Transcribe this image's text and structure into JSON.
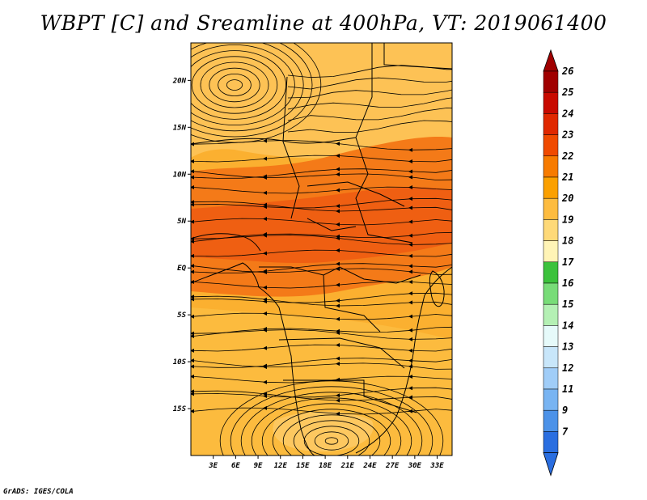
{
  "title": "WBPT [C] and Sreamline at 400hPa, VT: 2019061400",
  "credit": "GrADS: IGES/COLA",
  "map": {
    "region": "Central & Southern Africa",
    "lon_range": [
      0,
      35
    ],
    "lat_range": [
      -20,
      24
    ],
    "lat_ticks": [
      {
        "value": 20,
        "label": "20N"
      },
      {
        "value": 15,
        "label": "15N"
      },
      {
        "value": 10,
        "label": "10N"
      },
      {
        "value": 5,
        "label": "5N"
      },
      {
        "value": 0,
        "label": "EQ"
      },
      {
        "value": -5,
        "label": "5S"
      },
      {
        "value": -10,
        "label": "10S"
      },
      {
        "value": -15,
        "label": "15S"
      }
    ],
    "lon_ticks": [
      {
        "value": 3,
        "label": "3E"
      },
      {
        "value": 6,
        "label": "6E"
      },
      {
        "value": 9,
        "label": "9E"
      },
      {
        "value": 12,
        "label": "12E"
      },
      {
        "value": 15,
        "label": "15E"
      },
      {
        "value": 18,
        "label": "18E"
      },
      {
        "value": 21,
        "label": "21E"
      },
      {
        "value": 24,
        "label": "24E"
      },
      {
        "value": 27,
        "label": "27E"
      },
      {
        "value": 30,
        "label": "30E"
      },
      {
        "value": 33,
        "label": "33E"
      }
    ]
  },
  "colorbar": {
    "levels": [
      {
        "label": "26",
        "color": "#a00000"
      },
      {
        "label": "25",
        "color": "#c80a00"
      },
      {
        "label": "24",
        "color": "#e02800"
      },
      {
        "label": "23",
        "color": "#f04a00"
      },
      {
        "label": "22",
        "color": "#f77b00"
      },
      {
        "label": "21",
        "color": "#fba000"
      },
      {
        "label": "20",
        "color": "#fdbc40"
      },
      {
        "label": "19",
        "color": "#fed978"
      },
      {
        "label": "18",
        "color": "#fff4b6"
      },
      {
        "label": "17",
        "color": "#3cc23c"
      },
      {
        "label": "16",
        "color": "#78dc78"
      },
      {
        "label": "15",
        "color": "#b4f0b4"
      },
      {
        "label": "14",
        "color": "#e6fafa"
      },
      {
        "label": "13",
        "color": "#c8e6fa"
      },
      {
        "label": "12",
        "color": "#a0cdf8"
      },
      {
        "label": "11",
        "color": "#78b4f2"
      },
      {
        "label": "9",
        "color": "#4c92e8"
      },
      {
        "label": "7",
        "color": "#2a6ee0"
      }
    ],
    "top_color": "#a00000",
    "bottom_color": "#2a6ee0"
  }
}
